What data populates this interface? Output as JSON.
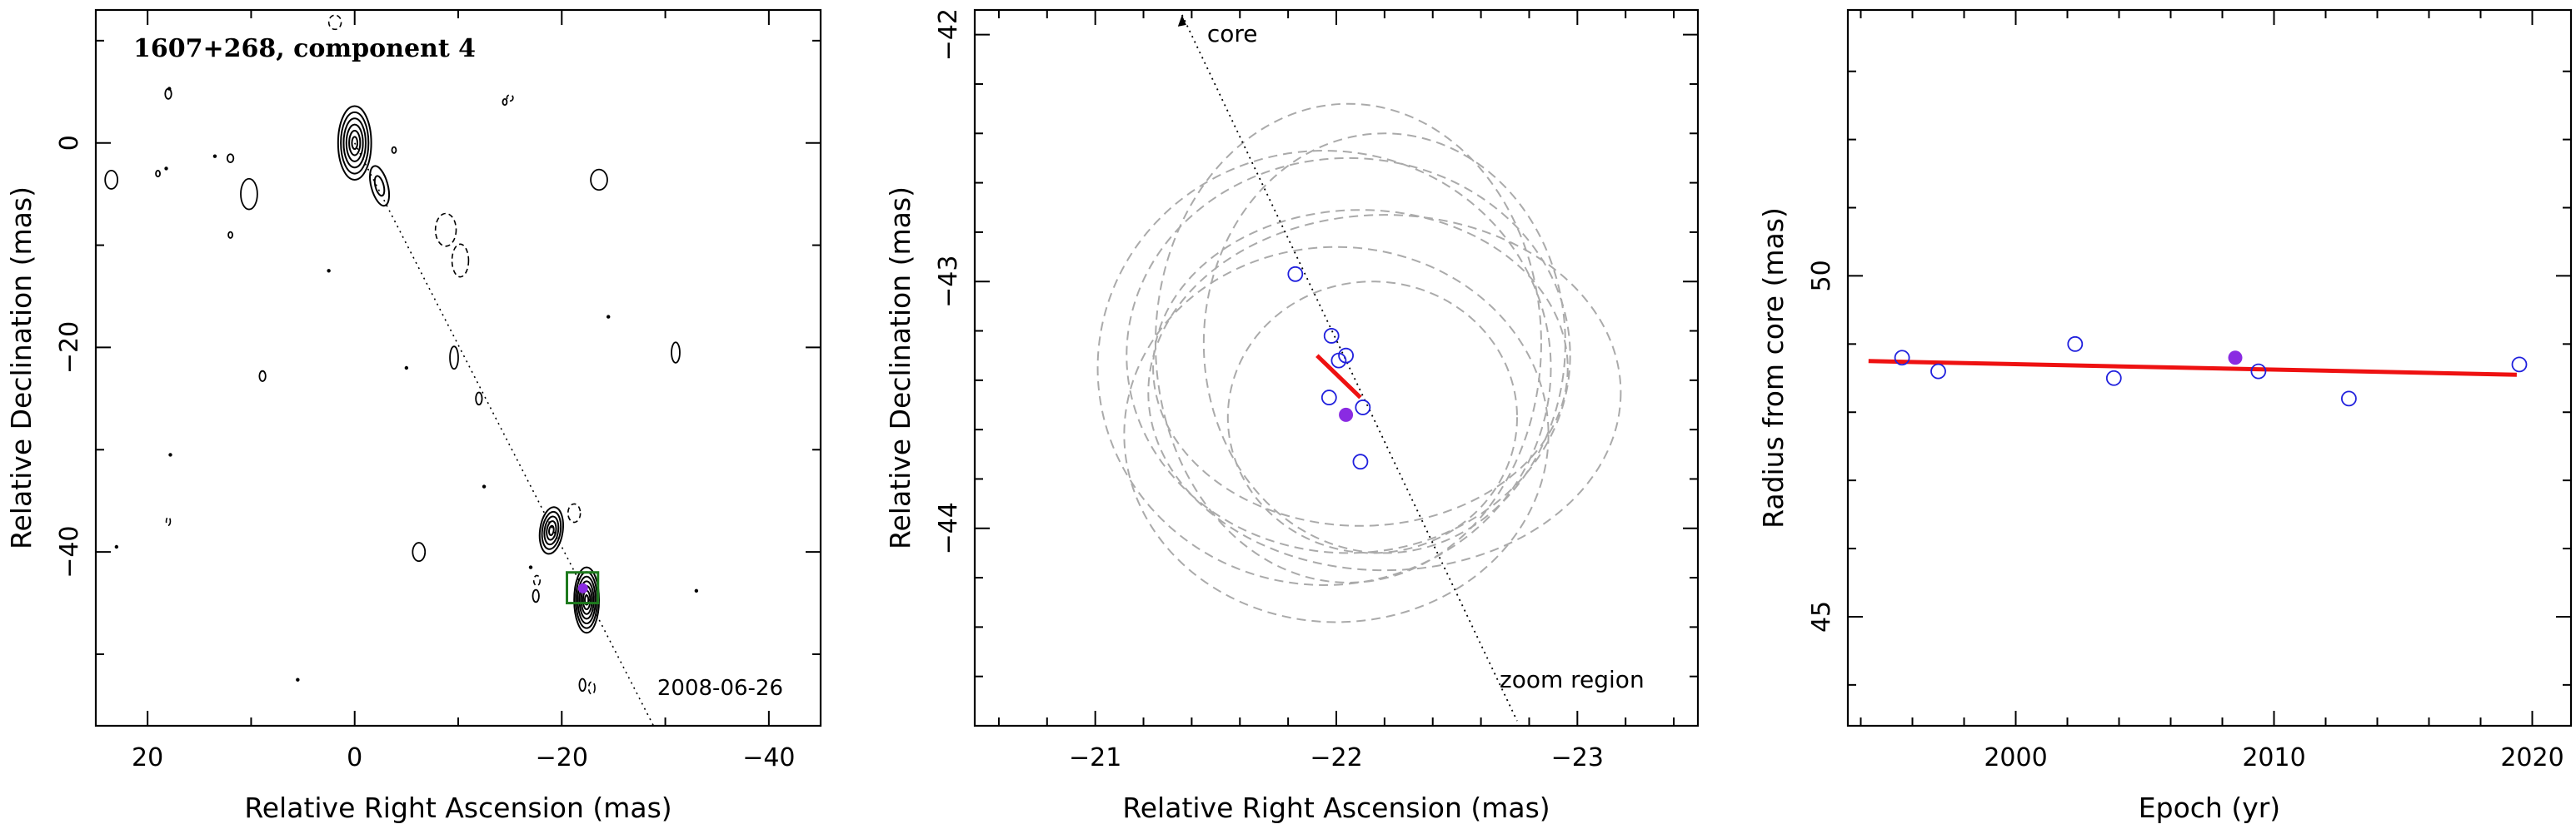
{
  "chart_data": [
    {
      "type": "contour",
      "title": "1607+268, component 4",
      "date": "2008-06-26",
      "xlabel": "Relative Right Ascension (mas)",
      "ylabel": "Relative Declination (mas)",
      "xlim": [
        25,
        -45
      ],
      "ylim": [
        -57,
        13
      ],
      "xticks_major": [
        20,
        0,
        -20,
        -40
      ],
      "yticks_major": [
        0,
        -20,
        -40
      ],
      "core": {
        "x": 0,
        "y": 0
      },
      "component": {
        "x": -22.05,
        "y": -43.55
      },
      "zoom_box": {
        "x0": -20.5,
        "x1": -23.5,
        "y0": -42,
        "y1": -45
      },
      "colors": {
        "box": "#1e7a1e",
        "component": "#8a2be2"
      }
    },
    {
      "type": "scatter",
      "xlabel": "Relative Right Ascension (mas)",
      "ylabel": "Relative Declination (mas)",
      "xlim": [
        -20.5,
        -23.5
      ],
      "ylim": [
        -44.8,
        -41.9
      ],
      "xticks_major": [
        -21,
        -22,
        -23
      ],
      "yticks_major": [
        -42,
        -43,
        -44
      ],
      "annotations": {
        "core": "core",
        "zoom": "zoom region"
      },
      "points": [
        {
          "x": -21.83,
          "y": -42.97
        },
        {
          "x": -21.98,
          "y": -43.22
        },
        {
          "x": -22.01,
          "y": -43.32
        },
        {
          "x": -22.04,
          "y": -43.3
        },
        {
          "x": -21.97,
          "y": -43.47
        },
        {
          "x": -22.11,
          "y": -43.51
        },
        {
          "x": -22.1,
          "y": -43.73
        }
      ],
      "highlight": {
        "x": -22.04,
        "y": -43.54
      },
      "motion": {
        "x0": -21.92,
        "y0": -43.3,
        "x1": -22.1,
        "y1": -43.47
      },
      "ellipses": [
        {
          "cx": -22.05,
          "cy": -43.3,
          "rx": 0.92,
          "ry": 0.8
        },
        {
          "cx": -22.2,
          "cy": -43.45,
          "rx": 0.98,
          "ry": 0.72
        },
        {
          "cx": -22.0,
          "cy": -43.62,
          "rx": 0.88,
          "ry": 0.76
        },
        {
          "cx": -22.05,
          "cy": -43.25,
          "rx": 0.8,
          "ry": 0.97
        },
        {
          "cx": -22.1,
          "cy": -43.35,
          "rx": 0.86,
          "ry": 0.64
        },
        {
          "cx": -22.2,
          "cy": -43.25,
          "rx": 0.75,
          "ry": 0.85
        },
        {
          "cx": -22.15,
          "cy": -43.55,
          "rx": 0.6,
          "ry": 0.55
        },
        {
          "cx": -21.95,
          "cy": -43.35,
          "rx": 0.94,
          "ry": 0.88
        }
      ],
      "colors": {
        "points": "#2020dd",
        "highlight": "#8a2be2",
        "motion": "#ee1111",
        "ellipse": "#aaaaaa"
      }
    },
    {
      "type": "scatter",
      "xlabel": "Epoch (yr)",
      "ylabel": "Radius from core (mas)",
      "xlim": [
        1993.5,
        2021.5
      ],
      "ylim": [
        43.4,
        53.9
      ],
      "xticks_major": [
        2000,
        2010,
        2020
      ],
      "yticks_major": [
        45,
        50
      ],
      "points": [
        {
          "x": 1995.6,
          "y": 48.8
        },
        {
          "x": 1997.0,
          "y": 48.6
        },
        {
          "x": 2002.3,
          "y": 49.0
        },
        {
          "x": 2003.8,
          "y": 48.5
        },
        {
          "x": 2009.4,
          "y": 48.6
        },
        {
          "x": 2012.9,
          "y": 48.2
        },
        {
          "x": 2019.5,
          "y": 48.7
        }
      ],
      "highlight": {
        "x": 2008.5,
        "y": 48.8
      },
      "fit": {
        "x0": 1994.3,
        "y0": 48.75,
        "x1": 2019.4,
        "y1": 48.55
      },
      "colors": {
        "points": "#2020dd",
        "highlight": "#8a2be2",
        "fit": "#ee1111"
      }
    }
  ]
}
